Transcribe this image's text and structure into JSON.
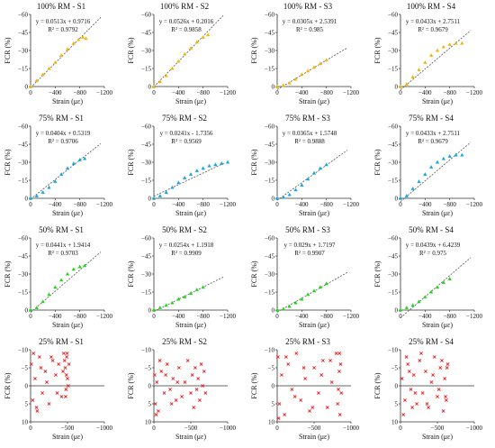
{
  "figure": {
    "colors": {
      "100": "#f2b705",
      "75": "#13a7e4",
      "50": "#20d61a",
      "25": "#ee1c1c",
      "axis": "#333333",
      "fit": "#555555"
    }
  },
  "chart_data": [
    {
      "type": "scatter",
      "title": "100% RM - S1",
      "equation": "y = 0.0513x + 0.9716",
      "r2": "R² = 0.9792",
      "xlabel": "Strain (με)",
      "ylabel": "FCR (%)",
      "x_ticks": [
        "0",
        "−400",
        "−800",
        "−1200"
      ],
      "y_ticks": [
        "0",
        "−15",
        "−30",
        "−45",
        "−60"
      ],
      "xlim": [
        0,
        -1200
      ],
      "ylim": [
        0,
        -60
      ],
      "shape": "triangle",
      "color_key": "100",
      "fit": {
        "slope": 0.0513,
        "intercept": 0.9716
      },
      "series": [
        {
          "x": [
            0,
            -100,
            -200,
            -300,
            -400,
            -500,
            -600,
            -700,
            -780,
            -850,
            -900
          ],
          "y": [
            0,
            -5,
            -10,
            -15,
            -20,
            -26,
            -31,
            -36,
            -39,
            -41,
            -40
          ]
        }
      ]
    },
    {
      "type": "scatter",
      "title": "100% RM - S2",
      "equation": "y = 0.0526x + 0.2016",
      "r2": "R² = 0.9858",
      "xlabel": "Strain (με)",
      "ylabel": "FCR (%)",
      "x_ticks": [
        "0",
        "−400",
        "−800",
        "−1200"
      ],
      "y_ticks": [
        "0",
        "−15",
        "−30",
        "−45",
        "−60"
      ],
      "xlim": [
        0,
        -1200
      ],
      "ylim": [
        0,
        -60
      ],
      "shape": "triangle",
      "color_key": "100",
      "fit": {
        "slope": 0.0526,
        "intercept": 0.2016
      },
      "series": [
        {
          "x": [
            0,
            -100,
            -200,
            -300,
            -400,
            -500,
            -600,
            -700,
            -800,
            -880
          ],
          "y": [
            0,
            -4,
            -9,
            -15,
            -21,
            -27,
            -32,
            -37,
            -41,
            -43
          ]
        }
      ]
    },
    {
      "type": "scatter",
      "title": "100% RM - S3",
      "equation": "y = 0.0305x + 2.5391",
      "r2": "R² = 0.985",
      "xlabel": "Strain (με)",
      "ylabel": "FCR (%)",
      "x_ticks": [
        "0",
        "−400",
        "−800",
        "−1200"
      ],
      "y_ticks": [
        "0",
        "−15",
        "−30",
        "−45",
        "−60"
      ],
      "xlim": [
        0,
        -1200
      ],
      "ylim": [
        0,
        -60
      ],
      "shape": "triangle",
      "color_key": "100",
      "fit": {
        "slope": 0.0305,
        "intercept": 2.5391
      },
      "series": [
        {
          "x": [
            0,
            -100,
            -200,
            -300,
            -400,
            -500,
            -600,
            -700,
            -800
          ],
          "y": [
            0,
            -1,
            -3,
            -6,
            -10,
            -13,
            -16,
            -19,
            -22
          ]
        }
      ]
    },
    {
      "type": "scatter",
      "title": "100% RM - S4",
      "equation": "y = 0.0433x + 2.7511",
      "r2": "R² = 0.9679",
      "xlabel": "Strain (με)",
      "ylabel": "FCR (%)",
      "x_ticks": [
        "0",
        "−400",
        "−800",
        "−1200"
      ],
      "y_ticks": [
        "0",
        "−15",
        "−30",
        "−45",
        "−60"
      ],
      "xlim": [
        0,
        -1200
      ],
      "ylim": [
        0,
        -60
      ],
      "shape": "triangle",
      "color_key": "100",
      "fit": {
        "slope": 0.0433,
        "intercept": 2.7511
      },
      "series": [
        {
          "x": [
            0,
            -100,
            -200,
            -300,
            -400,
            -500,
            -600,
            -700,
            -800,
            -900,
            -1000
          ],
          "y": [
            0,
            -2,
            -8,
            -14,
            -20,
            -26,
            -30,
            -33,
            -35,
            -36,
            -36
          ]
        }
      ]
    },
    {
      "type": "scatter",
      "title": "75% RM - S1",
      "equation": "y = 0.0404x + 0.5319",
      "r2": "R² = 0.9706",
      "xlabel": "Strain (με)",
      "ylabel": "FCR (%)",
      "x_ticks": [
        "0",
        "−400",
        "−800",
        "−1200"
      ],
      "y_ticks": [
        "0",
        "−15",
        "−30",
        "−45",
        "−60"
      ],
      "xlim": [
        0,
        -1200
      ],
      "ylim": [
        0,
        -60
      ],
      "shape": "triangle",
      "color_key": "75",
      "fit": {
        "slope": 0.0404,
        "intercept": 0.5319
      },
      "series": [
        {
          "x": [
            0,
            -100,
            -200,
            -300,
            -400,
            -500,
            -600,
            -700,
            -800,
            -880
          ],
          "y": [
            0,
            -2,
            -5,
            -9,
            -14,
            -20,
            -25,
            -29,
            -32,
            -33
          ]
        }
      ]
    },
    {
      "type": "scatter",
      "title": "75% RM - S2",
      "equation": "y = 0.0241x - 1.7356",
      "r2": "R² = 0.9569",
      "xlabel": "Strain (με)",
      "ylabel": "FCR (%)",
      "x_ticks": [
        "0",
        "−400",
        "−800",
        "−1200"
      ],
      "y_ticks": [
        "0",
        "−15",
        "−30",
        "−45",
        "−60"
      ],
      "xlim": [
        0,
        -1200
      ],
      "ylim": [
        0,
        -60
      ],
      "shape": "triangle",
      "color_key": "75",
      "fit": {
        "slope": 0.0241,
        "intercept": -1.7356
      },
      "series": [
        {
          "x": [
            0,
            -100,
            -200,
            -300,
            -400,
            -500,
            -600,
            -700,
            -800,
            -900,
            -1000,
            -1100,
            -1200
          ],
          "y": [
            0,
            -2,
            -5,
            -9,
            -13,
            -17,
            -20,
            -23,
            -25,
            -27,
            -28,
            -29,
            -30
          ]
        }
      ]
    },
    {
      "type": "scatter",
      "title": "75% RM - S3",
      "equation": "y = 0.0365x + 1.5748",
      "r2": "R² = 0.9888",
      "xlabel": "Strain (με)",
      "ylabel": "FCR (%)",
      "x_ticks": [
        "0",
        "−400",
        "−800",
        "−1200"
      ],
      "y_ticks": [
        "0",
        "−15",
        "−30",
        "−45",
        "−60"
      ],
      "xlim": [
        0,
        -1200
      ],
      "ylim": [
        0,
        -60
      ],
      "shape": "triangle",
      "color_key": "75",
      "fit": {
        "slope": 0.0365,
        "intercept": 1.5748
      },
      "series": [
        {
          "x": [
            0,
            -100,
            -200,
            -300,
            -400,
            -500,
            -600,
            -700,
            -800
          ],
          "y": [
            0,
            -1,
            -3,
            -7,
            -11,
            -16,
            -21,
            -25,
            -28
          ]
        }
      ]
    },
    {
      "type": "scatter",
      "title": "75% RM - S4",
      "equation": "y = 0.0433x + 2.7511",
      "r2": "R² = 0.9679",
      "xlabel": "Strain (με)",
      "ylabel": "FCR (%)",
      "x_ticks": [
        "0",
        "−400",
        "−800",
        "−1200"
      ],
      "y_ticks": [
        "0",
        "−15",
        "−30",
        "−45",
        "−60"
      ],
      "xlim": [
        0,
        -1200
      ],
      "ylim": [
        0,
        -60
      ],
      "shape": "triangle",
      "color_key": "75",
      "fit": {
        "slope": 0.0433,
        "intercept": 2.7511
      },
      "series": [
        {
          "x": [
            0,
            -100,
            -200,
            -300,
            -400,
            -500,
            -600,
            -700,
            -800,
            -900,
            -1000
          ],
          "y": [
            0,
            -2,
            -8,
            -14,
            -20,
            -26,
            -30,
            -33,
            -35,
            -36,
            -36
          ]
        }
      ]
    },
    {
      "type": "scatter",
      "title": "50% RM - S1",
      "equation": "y = 0.0441x + 1.9414",
      "r2": "R² = 0.9703",
      "xlabel": "Strain (με)",
      "ylabel": "FCR (%)",
      "x_ticks": [
        "0",
        "−400",
        "−800",
        "−1200"
      ],
      "y_ticks": [
        "0",
        "−15",
        "−30",
        "−45",
        "−60"
      ],
      "xlim": [
        0,
        -1200
      ],
      "ylim": [
        0,
        -60
      ],
      "shape": "triangle",
      "color_key": "50",
      "fit": {
        "slope": 0.0441,
        "intercept": 1.9414
      },
      "series": [
        {
          "x": [
            0,
            -100,
            -200,
            -300,
            -400,
            -500,
            -600,
            -700,
            -800,
            -880
          ],
          "y": [
            0,
            -2,
            -7,
            -13,
            -19,
            -25,
            -30,
            -34,
            -36,
            -37
          ]
        }
      ]
    },
    {
      "type": "scatter",
      "title": "50% RM - S2",
      "equation": "y = 0.0254x + 1.1918",
      "r2": "R² = 0.9909",
      "xlabel": "Strain (με)",
      "ylabel": "FCR (%)",
      "x_ticks": [
        "0",
        "−400",
        "−800",
        "−1200"
      ],
      "y_ticks": [
        "0",
        "−15",
        "−30",
        "−45",
        "−60"
      ],
      "xlim": [
        0,
        -1200
      ],
      "ylim": [
        0,
        -60
      ],
      "shape": "triangle",
      "color_key": "50",
      "fit": {
        "slope": 0.0254,
        "intercept": 1.1918
      },
      "series": [
        {
          "x": [
            0,
            -100,
            -200,
            -300,
            -400,
            -500,
            -600,
            -700,
            -800
          ],
          "y": [
            0,
            -2,
            -4,
            -6,
            -9,
            -11,
            -14,
            -17,
            -19
          ]
        }
      ]
    },
    {
      "type": "scatter",
      "title": "50% RM - S3",
      "equation": "y = 0.029x + 1.7197",
      "r2": "R² = 0.9907",
      "xlabel": "Strain (με)",
      "ylabel": "FCR (%)",
      "x_ticks": [
        "0",
        "−400",
        "−800",
        "−1200"
      ],
      "y_ticks": [
        "0",
        "−15",
        "−30",
        "−45",
        "−60"
      ],
      "xlim": [
        0,
        -1200
      ],
      "ylim": [
        0,
        -60
      ],
      "shape": "triangle",
      "color_key": "50",
      "fit": {
        "slope": 0.029,
        "intercept": 1.7197
      },
      "series": [
        {
          "x": [
            0,
            -100,
            -200,
            -300,
            -400,
            -500,
            -600,
            -700,
            -800
          ],
          "y": [
            0,
            -1,
            -3,
            -6,
            -9,
            -13,
            -16,
            -19,
            -22
          ]
        }
      ]
    },
    {
      "type": "scatter",
      "title": "50% RM - S4",
      "equation": "y = 0.0439x + 6.4239",
      "r2": "R² = 0.975",
      "xlabel": "Strain (με)",
      "ylabel": "FCR (%)",
      "x_ticks": [
        "0",
        "−400",
        "−800",
        "−1200"
      ],
      "y_ticks": [
        "0",
        "−15",
        "−30",
        "−45",
        "−60"
      ],
      "xlim": [
        0,
        -1200
      ],
      "ylim": [
        0,
        -60
      ],
      "shape": "triangle",
      "color_key": "50",
      "fit": {
        "slope": 0.0439,
        "intercept": 6.4239
      },
      "series": [
        {
          "x": [
            0,
            -100,
            -200,
            -300,
            -400,
            -500,
            -600,
            -700,
            -800
          ],
          "y": [
            0,
            -2,
            -4,
            -7,
            -11,
            -15,
            -19,
            -23,
            -26
          ]
        }
      ]
    },
    {
      "type": "scatter",
      "title": "25% RM - S1",
      "xlabel": "Strain (με)",
      "ylabel": "FCR (%)",
      "x_ticks": [
        "0",
        "−500",
        "−1000"
      ],
      "y_ticks": [
        "10",
        "5",
        "0",
        "−5",
        "−10"
      ],
      "xlim": [
        0,
        -1000
      ],
      "ylim": [
        10,
        -10
      ],
      "shape": "cross",
      "color_key": "25",
      "baseline": 0,
      "series": [
        {
          "x": [
            -10,
            -30,
            -60,
            -90,
            -120,
            -160,
            -200,
            -250,
            -300,
            -340,
            -380,
            -420,
            -450,
            -470,
            -480,
            -490,
            -500,
            -520,
            -40,
            -80,
            -140,
            -220,
            -280,
            -360,
            -440,
            -460,
            -475,
            -485,
            -495,
            -510
          ],
          "y": [
            -6,
            4,
            -2,
            7,
            -8,
            2,
            -4,
            5,
            -7,
            -3,
            -6,
            3,
            -9,
            -5,
            1,
            -8,
            -2,
            -6,
            -9,
            6,
            -5,
            -1,
            -8,
            2,
            -4,
            -7,
            3,
            -3,
            -9,
            0
          ]
        }
      ]
    },
    {
      "type": "scatter",
      "title": "25% RM - S2",
      "xlabel": "Strain (με)",
      "ylabel": "FCR (%)",
      "x_ticks": [
        "0",
        "−500",
        "−1000"
      ],
      "y_ticks": [
        "10",
        "5",
        "0",
        "−5",
        "−10"
      ],
      "xlim": [
        0,
        -1000
      ],
      "ylim": [
        10,
        -10
      ],
      "shape": "cross",
      "color_key": "25",
      "baseline": 0,
      "series": [
        {
          "x": [
            -10,
            -20,
            -40,
            -60,
            -100,
            -140,
            -180,
            -220,
            -260,
            -300,
            -340,
            -380,
            -420,
            -460,
            -500,
            -520,
            -540,
            -560,
            -580,
            -600,
            -620,
            -640,
            -660,
            -680,
            -700,
            -30,
            -80,
            -160,
            -240,
            -320
          ],
          "y": [
            -3,
            5,
            -1,
            7,
            -4,
            2,
            -6,
            1,
            -2,
            4,
            -5,
            3,
            -1,
            -7,
            2,
            -3,
            6,
            -5,
            1,
            -2,
            4,
            -6,
            0,
            -4,
            2,
            8,
            -7,
            -3,
            5,
            -1
          ]
        }
      ]
    },
    {
      "type": "scatter",
      "title": "25% RM - S3",
      "xlabel": "Strain (με)",
      "ylabel": "FCR (%)",
      "x_ticks": [
        "0",
        "−500",
        "−1000"
      ],
      "y_ticks": [
        "10",
        "5",
        "0",
        "−5",
        "−10"
      ],
      "xlim": [
        0,
        -1000
      ],
      "ylim": [
        10,
        -10
      ],
      "shape": "cross",
      "color_key": "25",
      "baseline": 0,
      "series": [
        {
          "x": [
            -10,
            -30,
            -60,
            -100,
            -150,
            -200,
            -260,
            -320,
            -380,
            -440,
            -500,
            -560,
            -620,
            -680,
            -740,
            -800,
            -820,
            -840,
            -850,
            -860,
            -870,
            -20,
            -120,
            -240,
            -360,
            -480,
            -600,
            -720,
            -830,
            -845
          ],
          "y": [
            -8,
            5,
            -3,
            8,
            -6,
            1,
            -9,
            4,
            -2,
            7,
            -5,
            2,
            -7,
            6,
            -1,
            -9,
            5,
            -4,
            8,
            -6,
            2,
            9,
            -8,
            3,
            -5,
            6,
            -3,
            -7,
            1,
            -9
          ]
        }
      ]
    },
    {
      "type": "scatter",
      "title": "25% RM - S4",
      "xlabel": "Strain (με)",
      "ylabel": "FCR (%)",
      "x_ticks": [
        "0",
        "−500",
        "−1000"
      ],
      "y_ticks": [
        "10",
        "5",
        "0",
        "−5",
        "−10"
      ],
      "xlim": [
        0,
        -1000
      ],
      "ylim": [
        10,
        -10
      ],
      "shape": "cross",
      "color_key": "25",
      "baseline": 0,
      "series": [
        {
          "x": [
            -20,
            -60,
            -100,
            -140,
            -180,
            -220,
            -260,
            -300,
            -340,
            -380,
            -420,
            -460,
            -500,
            -540,
            -580,
            -600,
            -620,
            -640,
            -40,
            -120,
            -200,
            -280,
            -360,
            -440,
            -520,
            -560,
            -610,
            -630,
            -80,
            -160
          ],
          "y": [
            -2,
            4,
            -6,
            1,
            -3,
            5,
            -7,
            2,
            -4,
            6,
            -1,
            -8,
            3,
            -5,
            7,
            -2,
            4,
            -6,
            8,
            -4,
            2,
            -9,
            5,
            -3,
            1,
            -7,
            3,
            -5,
            -8,
            6
          ]
        }
      ]
    }
  ]
}
